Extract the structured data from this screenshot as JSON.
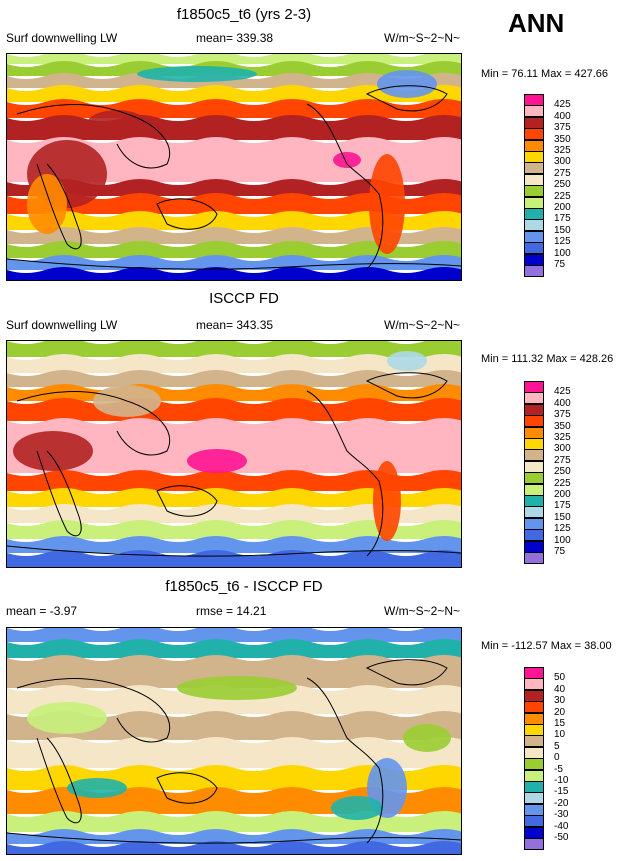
{
  "season": "ANN",
  "panels": [
    {
      "title": "f1850c5_t6 (yrs 2-3)",
      "left_label": "Surf downwelling LW",
      "center_label": "mean= 339.38",
      "units": "W/m~S~2~N~",
      "minmax": "Min =  76.11 Max = 427.66",
      "legend": {
        "labels": [
          "425",
          "400",
          "375",
          "350",
          "325",
          "300",
          "275",
          "250",
          "225",
          "200",
          "175",
          "150",
          "125",
          "100",
          "75"
        ],
        "colors": [
          "#ff1493",
          "#ffb6c1",
          "#b22222",
          "#ff4500",
          "#ff8c00",
          "#ffd700",
          "#d2b48c",
          "#f5e6c8",
          "#9acd32",
          "#c8f07a",
          "#20b2aa",
          "#add8e6",
          "#6495ed",
          "#4169e1",
          "#0000cd",
          "#9370db"
        ]
      }
    },
    {
      "title": "ISCCP FD",
      "left_label": "Surf downwelling LW",
      "center_label": "mean= 343.35",
      "units": "W/m~S~2~N~",
      "minmax": "Min = 111.32 Max = 428.26",
      "legend": {
        "labels": [
          "425",
          "400",
          "375",
          "350",
          "325",
          "300",
          "275",
          "250",
          "225",
          "200",
          "175",
          "150",
          "125",
          "100",
          "75"
        ],
        "colors": [
          "#ff1493",
          "#ffb6c1",
          "#b22222",
          "#ff4500",
          "#ff8c00",
          "#ffd700",
          "#d2b48c",
          "#f5e6c8",
          "#9acd32",
          "#c8f07a",
          "#20b2aa",
          "#add8e6",
          "#6495ed",
          "#4169e1",
          "#0000cd",
          "#9370db"
        ]
      }
    },
    {
      "title": "f1850c5_t6 - ISCCP FD",
      "left_label": "mean =  -3.97",
      "center_label": "rmse =  14.21",
      "units": "W/m~S~2~N~",
      "minmax": "Min = -112.57 Max =  38.00",
      "legend": {
        "labels": [
          "50",
          "40",
          "30",
          "20",
          "15",
          "10",
          "5",
          "0",
          "-5",
          "-10",
          "-15",
          "-20",
          "-30",
          "-40",
          "-50"
        ],
        "colors": [
          "#ff1493",
          "#ffb6c1",
          "#b22222",
          "#ff4500",
          "#ff8c00",
          "#ffd700",
          "#d2b48c",
          "#f5e6c8",
          "#9acd32",
          "#c8f07a",
          "#20b2aa",
          "#add8e6",
          "#6495ed",
          "#4169e1",
          "#0000cd",
          "#9370db"
        ]
      }
    }
  ]
}
